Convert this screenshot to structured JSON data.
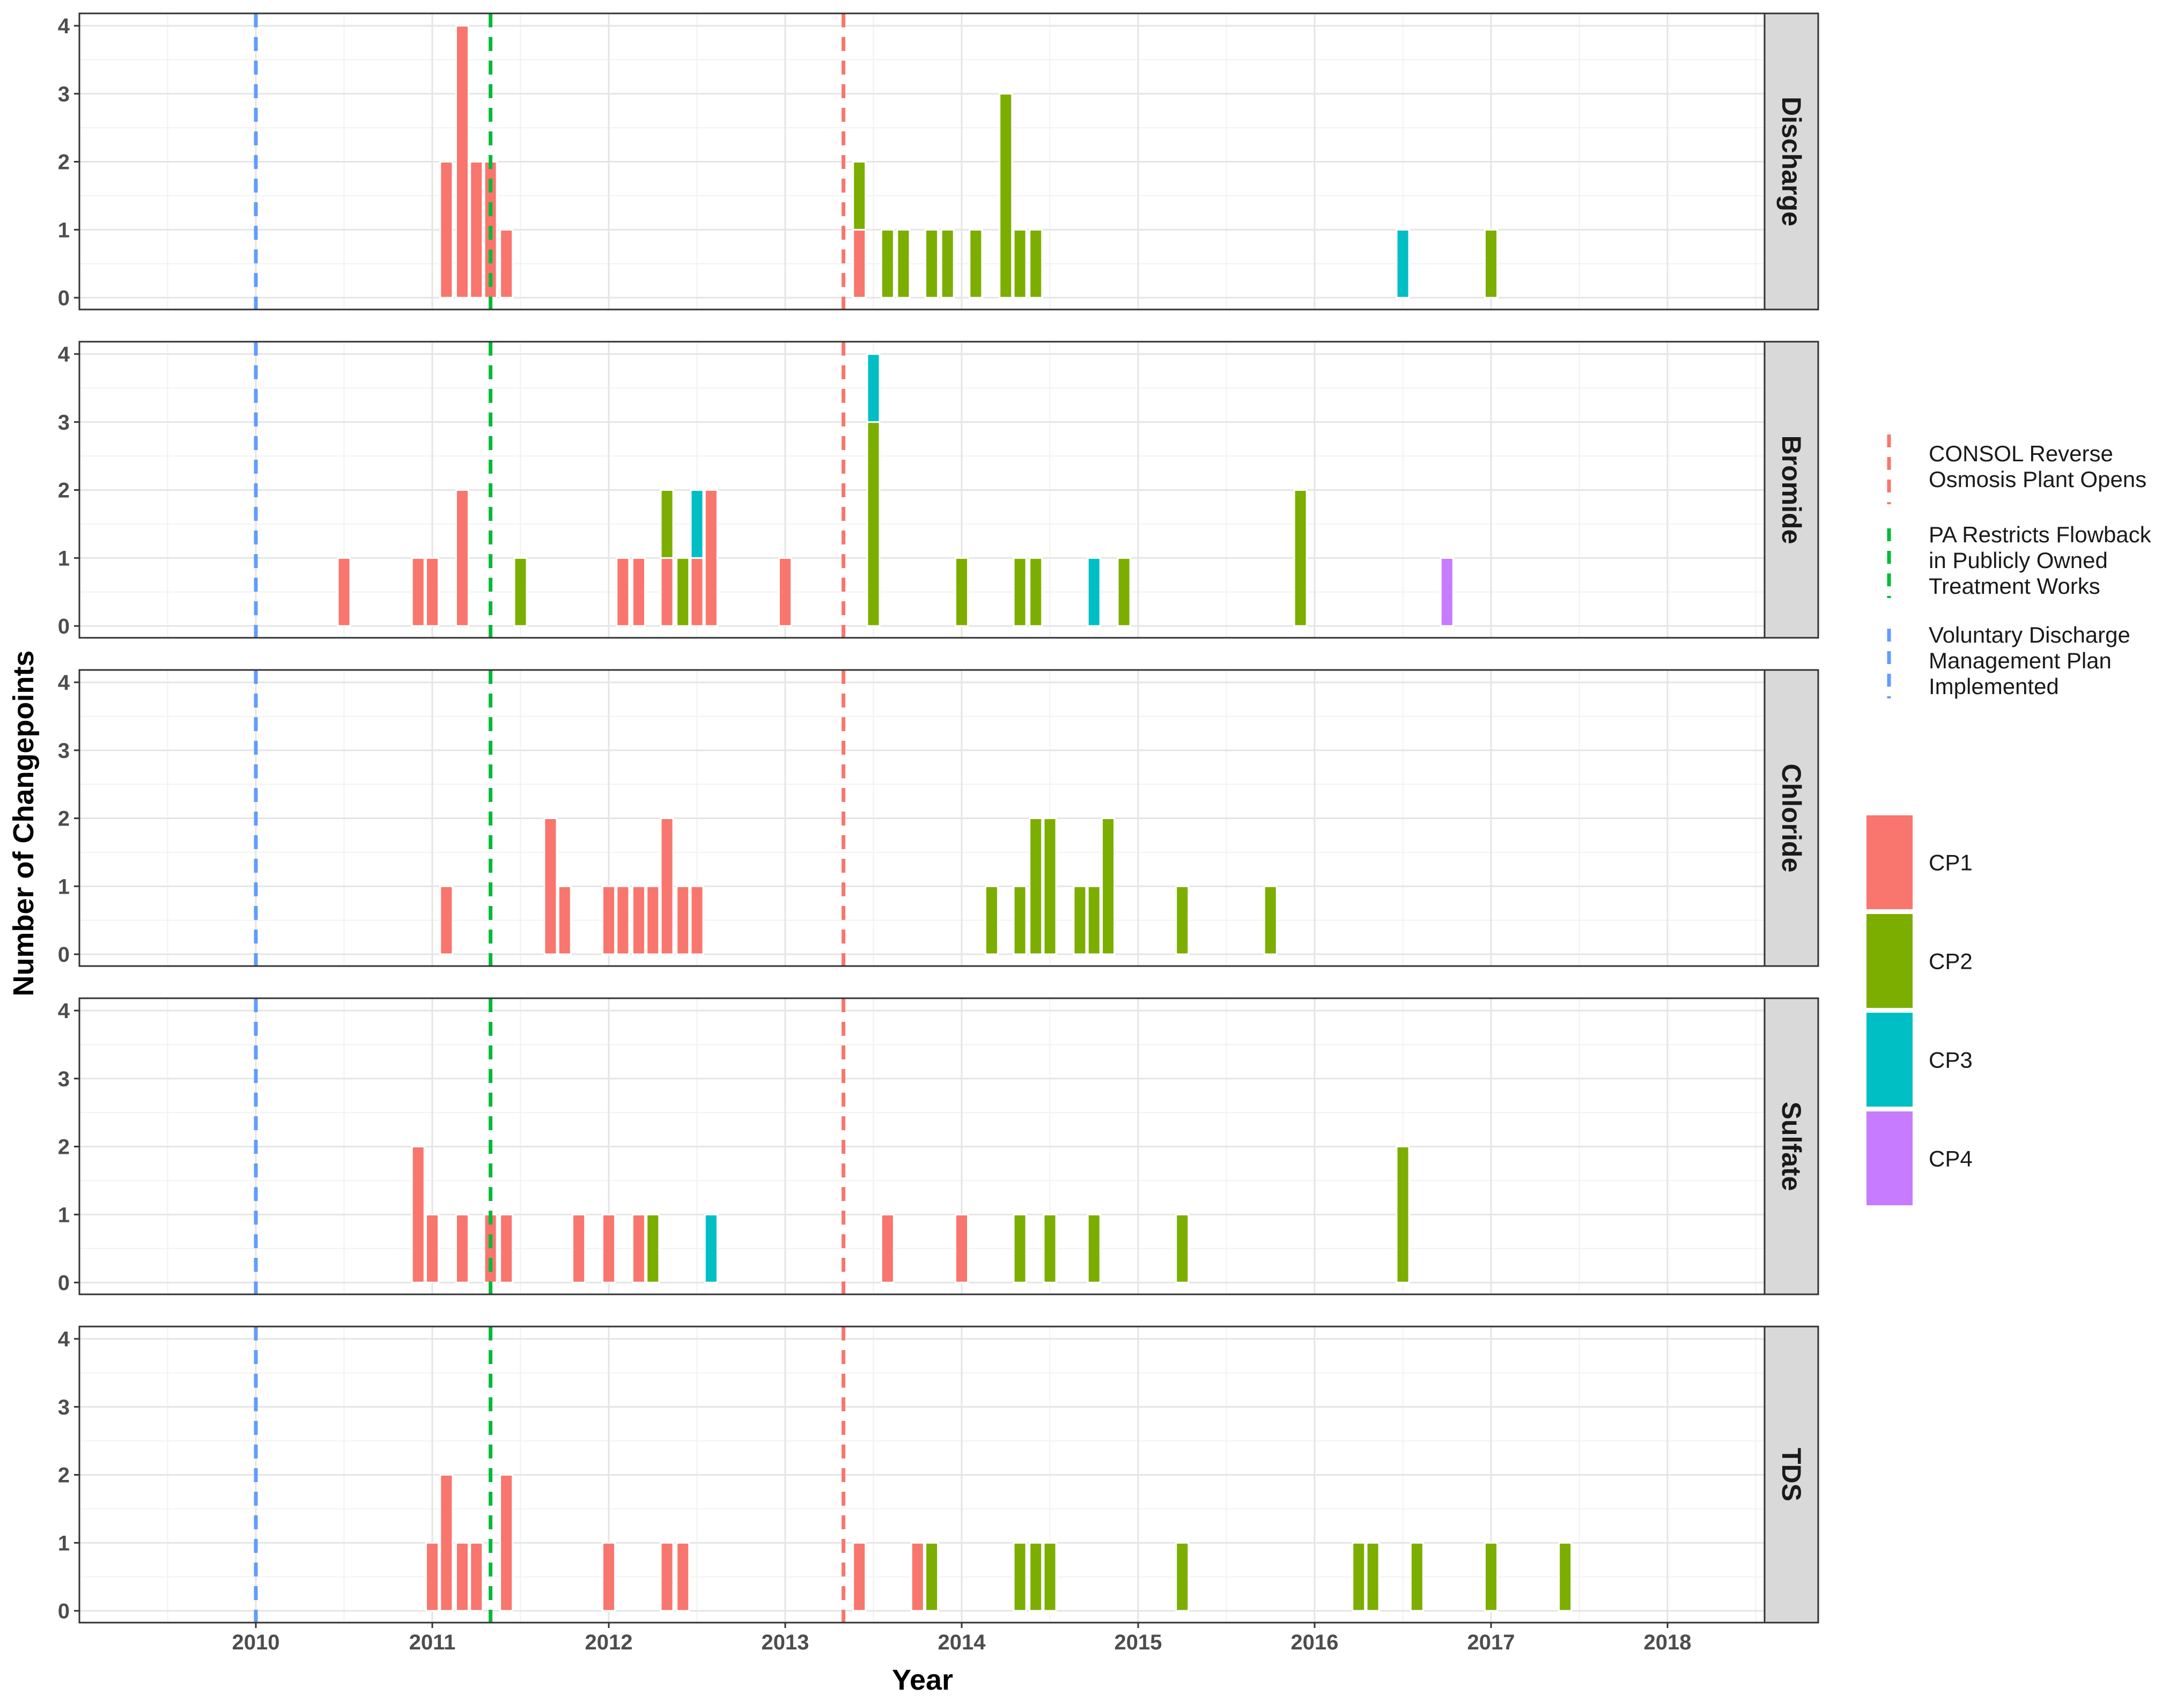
{
  "chart_data": {
    "type": "bar",
    "xlabel": "Year",
    "ylabel": "Number of Changepoints",
    "xlim": [
      2009.0,
      2018.55
    ],
    "ylim": [
      0,
      4
    ],
    "x_ticks": [
      "2010",
      "2011",
      "2012",
      "2013",
      "2014",
      "2015",
      "2016",
      "2017",
      "2018"
    ],
    "y_ticks": [
      "0",
      "1",
      "2",
      "3",
      "4"
    ],
    "grid": true,
    "bar_width_years": 0.07,
    "stacked": true,
    "series": [
      {
        "name": "CP1",
        "color": "#F8766D"
      },
      {
        "name": "CP2",
        "color": "#7CAE00"
      },
      {
        "name": "CP3",
        "color": "#00BFC4"
      },
      {
        "name": "CP4",
        "color": "#C77CFF"
      }
    ],
    "panels": [
      {
        "name": "Discharge",
        "bars": [
          {
            "x": 2011.08,
            "CP1": 2
          },
          {
            "x": 2011.17,
            "CP1": 4
          },
          {
            "x": 2011.25,
            "CP1": 2
          },
          {
            "x": 2011.33,
            "CP1": 2
          },
          {
            "x": 2011.42,
            "CP1": 1
          },
          {
            "x": 2013.42,
            "CP1": 1,
            "CP2": 1
          },
          {
            "x": 2013.58,
            "CP2": 1
          },
          {
            "x": 2013.67,
            "CP2": 1
          },
          {
            "x": 2013.83,
            "CP2": 1
          },
          {
            "x": 2013.92,
            "CP2": 1
          },
          {
            "x": 2014.08,
            "CP2": 1
          },
          {
            "x": 2014.25,
            "CP2": 3
          },
          {
            "x": 2014.33,
            "CP2": 1
          },
          {
            "x": 2014.42,
            "CP2": 1
          },
          {
            "x": 2016.5,
            "CP3": 1
          },
          {
            "x": 2017.0,
            "CP2": 1
          }
        ]
      },
      {
        "name": "Bromide",
        "bars": [
          {
            "x": 2010.5,
            "CP1": 1
          },
          {
            "x": 2010.92,
            "CP1": 1
          },
          {
            "x": 2011.0,
            "CP1": 1
          },
          {
            "x": 2011.17,
            "CP1": 2
          },
          {
            "x": 2011.5,
            "CP2": 1
          },
          {
            "x": 2012.08,
            "CP1": 1
          },
          {
            "x": 2012.17,
            "CP1": 1
          },
          {
            "x": 2012.33,
            "CP2": 1,
            "CP1": 1
          },
          {
            "x": 2012.42,
            "CP2": 1
          },
          {
            "x": 2012.5,
            "CP3": 1,
            "CP1": 1
          },
          {
            "x": 2012.58,
            "CP1": 2
          },
          {
            "x": 2013.0,
            "CP1": 1
          },
          {
            "x": 2013.5,
            "CP3": 1,
            "CP2": 3
          },
          {
            "x": 2014.0,
            "CP2": 1
          },
          {
            "x": 2014.33,
            "CP2": 1
          },
          {
            "x": 2014.42,
            "CP2": 1
          },
          {
            "x": 2014.75,
            "CP3": 1
          },
          {
            "x": 2014.92,
            "CP2": 1
          },
          {
            "x": 2015.92,
            "CP2": 2
          },
          {
            "x": 2016.75,
            "CP4": 1
          }
        ]
      },
      {
        "name": "Chloride",
        "bars": [
          {
            "x": 2011.08,
            "CP1": 1
          },
          {
            "x": 2011.67,
            "CP1": 2
          },
          {
            "x": 2011.75,
            "CP1": 1
          },
          {
            "x": 2012.0,
            "CP1": 1
          },
          {
            "x": 2012.08,
            "CP1": 1
          },
          {
            "x": 2012.17,
            "CP1": 1
          },
          {
            "x": 2012.25,
            "CP1": 1
          },
          {
            "x": 2012.33,
            "CP1": 2
          },
          {
            "x": 2012.42,
            "CP1": 1
          },
          {
            "x": 2012.5,
            "CP1": 1
          },
          {
            "x": 2014.17,
            "CP2": 1
          },
          {
            "x": 2014.33,
            "CP2": 1
          },
          {
            "x": 2014.42,
            "CP2": 2
          },
          {
            "x": 2014.5,
            "CP2": 2
          },
          {
            "x": 2014.67,
            "CP2": 1
          },
          {
            "x": 2014.75,
            "CP2": 1
          },
          {
            "x": 2014.83,
            "CP2": 2
          },
          {
            "x": 2015.25,
            "CP2": 1
          },
          {
            "x": 2015.75,
            "CP2": 1
          }
        ]
      },
      {
        "name": "Sulfate",
        "bars": [
          {
            "x": 2010.92,
            "CP1": 2
          },
          {
            "x": 2011.0,
            "CP1": 1
          },
          {
            "x": 2011.17,
            "CP1": 1
          },
          {
            "x": 2011.33,
            "CP1": 1
          },
          {
            "x": 2011.42,
            "CP1": 1
          },
          {
            "x": 2011.83,
            "CP1": 1
          },
          {
            "x": 2012.0,
            "CP1": 1
          },
          {
            "x": 2012.17,
            "CP1": 1
          },
          {
            "x": 2012.25,
            "CP2": 1
          },
          {
            "x": 2012.58,
            "CP3": 1
          },
          {
            "x": 2013.58,
            "CP1": 1
          },
          {
            "x": 2014.0,
            "CP1": 1
          },
          {
            "x": 2014.33,
            "CP2": 1
          },
          {
            "x": 2014.5,
            "CP2": 1
          },
          {
            "x": 2014.75,
            "CP2": 1
          },
          {
            "x": 2015.25,
            "CP2": 1
          },
          {
            "x": 2016.5,
            "CP2": 2
          }
        ]
      },
      {
        "name": "TDS",
        "bars": [
          {
            "x": 2011.0,
            "CP1": 1
          },
          {
            "x": 2011.08,
            "CP1": 2
          },
          {
            "x": 2011.17,
            "CP1": 1
          },
          {
            "x": 2011.25,
            "CP1": 1
          },
          {
            "x": 2011.42,
            "CP1": 2
          },
          {
            "x": 2012.0,
            "CP1": 1
          },
          {
            "x": 2012.33,
            "CP1": 1
          },
          {
            "x": 2012.42,
            "CP1": 1
          },
          {
            "x": 2013.42,
            "CP1": 1
          },
          {
            "x": 2013.75,
            "CP1": 1
          },
          {
            "x": 2013.83,
            "CP2": 1
          },
          {
            "x": 2014.33,
            "CP2": 1
          },
          {
            "x": 2014.42,
            "CP2": 1
          },
          {
            "x": 2014.5,
            "CP2": 1
          },
          {
            "x": 2015.25,
            "CP2": 1
          },
          {
            "x": 2016.25,
            "CP2": 1
          },
          {
            "x": 2016.33,
            "CP2": 1
          },
          {
            "x": 2016.58,
            "CP2": 1
          },
          {
            "x": 2017.0,
            "CP2": 1
          },
          {
            "x": 2017.42,
            "CP2": 1
          }
        ]
      }
    ],
    "events": [
      {
        "label_lines": [
          "CONSOL Reverse",
          "Osmosis Plant Opens"
        ],
        "x": 2013.33,
        "color": "#F8766D",
        "linestyle": "dashed"
      },
      {
        "label_lines": [
          "PA Restricts Flowback",
          " in Publicly Owned",
          " Treatment Works"
        ],
        "x": 2011.33,
        "color": "#00BA38",
        "linestyle": "dashed"
      },
      {
        "label_lines": [
          "Voluntary Discharge",
          " Management Plan",
          " Implemented"
        ],
        "x": 2010.0,
        "color": "#619CFF",
        "linestyle": "dashed"
      }
    ],
    "legend_position": "right"
  }
}
